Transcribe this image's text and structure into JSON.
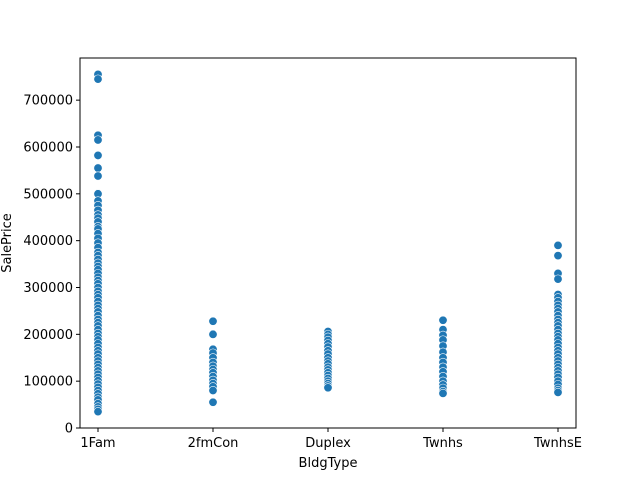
{
  "chart_data": {
    "type": "scatter",
    "title": "",
    "xlabel": "BldgType",
    "ylabel": "SalePrice",
    "categories": [
      "1Fam",
      "2fmCon",
      "Duplex",
      "Twnhs",
      "TwnhsE"
    ],
    "ylim": [
      0,
      790000
    ],
    "yticks": [
      0,
      100000,
      200000,
      300000,
      400000,
      500000,
      600000,
      700000
    ],
    "ytick_labels": [
      "0",
      "100000",
      "200000",
      "300000",
      "400000",
      "500000",
      "600000",
      "700000"
    ],
    "grid": false,
    "legend": "none",
    "marker_color": "#1f77b4",
    "points": {
      "1Fam": [
        755000,
        745000,
        625000,
        615000,
        582000,
        555000,
        538000,
        500000,
        485000,
        475000,
        465000,
        455000,
        448000,
        440000,
        430000,
        425000,
        415000,
        405000,
        395000,
        385000,
        375000,
        368000,
        360000,
        352000,
        345000,
        338000,
        330000,
        322000,
        315000,
        308000,
        300000,
        292000,
        285000,
        278000,
        270000,
        262000,
        255000,
        248000,
        240000,
        232000,
        225000,
        218000,
        210000,
        202000,
        195000,
        188000,
        180000,
        172000,
        165000,
        158000,
        150000,
        143000,
        136000,
        129000,
        122000,
        115000,
        108000,
        101000,
        94000,
        87000,
        80000,
        73000,
        66000,
        60000,
        52000,
        45000,
        40000,
        35000
      ],
      "2fmCon": [
        228000,
        200000,
        168000,
        160000,
        150000,
        140000,
        132000,
        125000,
        118000,
        110000,
        102000,
        95000,
        88000,
        80000,
        55000
      ],
      "Duplex": [
        206000,
        200000,
        194000,
        187000,
        180000,
        173000,
        165000,
        158000,
        150000,
        143000,
        137000,
        130000,
        124000,
        118000,
        112000,
        106000,
        100000,
        95000,
        90000,
        86000
      ],
      "Twnhs": [
        230000,
        210000,
        198000,
        188000,
        175000,
        162000,
        150000,
        140000,
        130000,
        120000,
        110000,
        100000,
        92000,
        85000,
        78000,
        74000
      ],
      "TwnhsE": [
        390000,
        368000,
        330000,
        318000,
        285000,
        278000,
        270000,
        262000,
        255000,
        248000,
        240000,
        232000,
        225000,
        218000,
        210000,
        202000,
        195000,
        188000,
        180000,
        172000,
        165000,
        158000,
        150000,
        143000,
        136000,
        129000,
        122000,
        115000,
        108000,
        100000,
        93000,
        85000,
        80000,
        76000
      ]
    }
  }
}
